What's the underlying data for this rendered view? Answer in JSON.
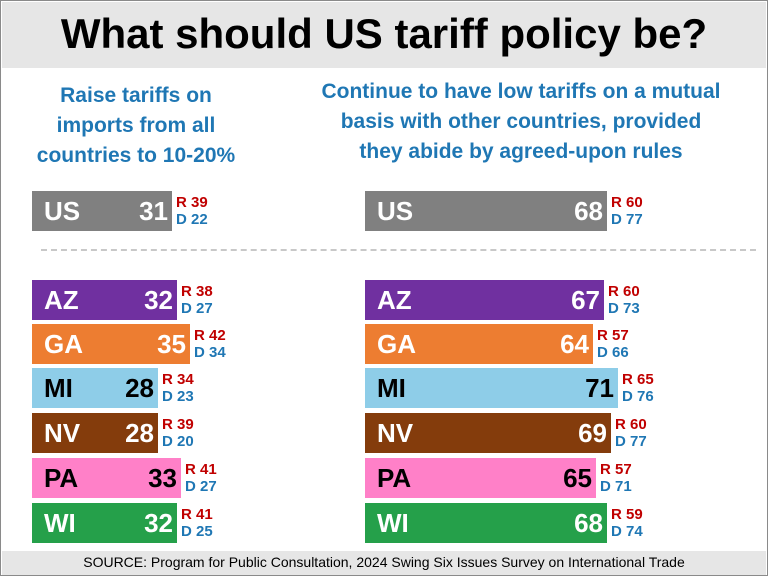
{
  "title": "What should US tariff policy be?",
  "source": "SOURCE: Program for Public Consultation, 2024 Swing Six Issues Survey on International Trade",
  "colors": {
    "US": "#808080",
    "AZ": "#7030a0",
    "GA": "#ed7d31",
    "MI": "#8ecde8",
    "NV": "#843c0c",
    "PA": "#ff80c8",
    "WI": "#25a04a",
    "republican_text": "#c00000",
    "democrat_text": "#1f77b4",
    "heading_text": "#1f77b4"
  },
  "chart_data": [
    {
      "type": "bar",
      "title": "Raise tariffs on imports from all countries to 10-20%",
      "title_lines": [
        "Raise tariffs on",
        "imports from all",
        "countries to 10-20%"
      ],
      "categories": [
        "US",
        "AZ",
        "GA",
        "MI",
        "NV",
        "PA",
        "WI"
      ],
      "values": [
        31,
        32,
        35,
        28,
        28,
        33,
        32
      ],
      "republican": [
        39,
        38,
        42,
        34,
        39,
        41,
        41
      ],
      "democrat": [
        22,
        27,
        34,
        23,
        20,
        27,
        25
      ],
      "r_prefix": "R",
      "d_prefix": "D"
    },
    {
      "type": "bar",
      "title": "Continue to have low tariffs on a mutual basis with other countries, provided they abide by agreed-upon rules",
      "title_lines": [
        "Continue to have low tariffs on a mutual",
        "basis with other countries, provided",
        "they abide by agreed-upon rules"
      ],
      "categories": [
        "US",
        "AZ",
        "GA",
        "MI",
        "NV",
        "PA",
        "WI"
      ],
      "values": [
        68,
        67,
        64,
        71,
        69,
        65,
        68
      ],
      "republican": [
        60,
        60,
        57,
        65,
        60,
        57,
        59
      ],
      "democrat": [
        77,
        73,
        66,
        76,
        77,
        71,
        74
      ],
      "r_prefix": "R",
      "d_prefix": "D"
    }
  ]
}
